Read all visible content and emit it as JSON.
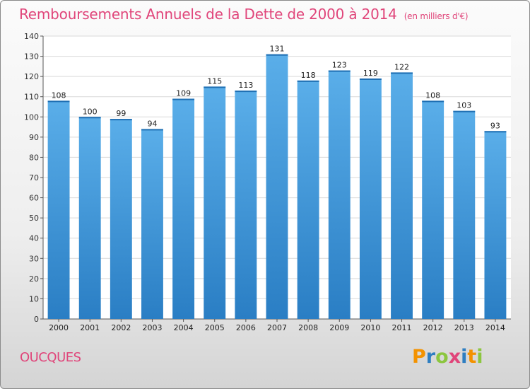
{
  "header": {
    "title": "Remboursements Annuels de la Dette de 2000 à 2014",
    "unit": "(en milliers d'€)"
  },
  "commune": "OUCQUES",
  "logo": {
    "text": "Proxiti",
    "letters": [
      {
        "ch": "P",
        "color": "#f39200"
      },
      {
        "ch": "r",
        "color": "#2e7ec1"
      },
      {
        "ch": "o",
        "color": "#8cc63f"
      },
      {
        "ch": "x",
        "color": "#e0457a"
      },
      {
        "ch": "i",
        "color": "#2e7ec1"
      },
      {
        "ch": "t",
        "color": "#f39200"
      },
      {
        "ch": "i",
        "color": "#8cc63f"
      }
    ]
  },
  "colors": {
    "bar_top": "#5aaee9",
    "bar_bottom": "#2a7ec4",
    "grid": "#d9d9d9",
    "title": "#e0457a"
  },
  "chart_data": {
    "type": "bar",
    "title": "Remboursements Annuels de la Dette de 2000 à 2014",
    "xlabel": "",
    "ylabel": "",
    "categories": [
      "2000",
      "2001",
      "2002",
      "2003",
      "2004",
      "2005",
      "2006",
      "2007",
      "2008",
      "2009",
      "2010",
      "2011",
      "2012",
      "2013",
      "2014"
    ],
    "values": [
      108,
      100,
      99,
      94,
      109,
      115,
      113,
      131,
      118,
      123,
      119,
      122,
      108,
      103,
      93
    ],
    "ylim": [
      0,
      140
    ],
    "yticks": [
      0,
      10,
      20,
      30,
      40,
      50,
      60,
      70,
      80,
      90,
      100,
      110,
      120,
      130,
      140
    ],
    "grid": true,
    "data_labels": true
  }
}
